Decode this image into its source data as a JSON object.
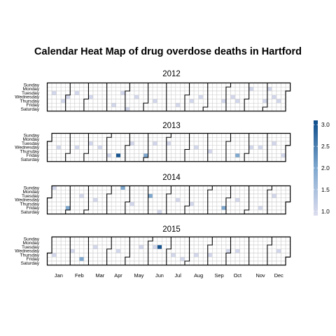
{
  "chart_data": {
    "type": "heatmap",
    "title": "Calendar Heat Map of drug overdose deaths in Hartford",
    "years": [
      "2012",
      "2013",
      "2014",
      "2015"
    ],
    "weekdays": [
      "Sunday",
      "Monday",
      "Tuesday",
      "Wednesday",
      "Thursday",
      "Friday",
      "Saturday"
    ],
    "months": [
      "Jan",
      "Feb",
      "Mar",
      "Apr",
      "May",
      "Jun",
      "Jul",
      "Aug",
      "Sep",
      "Oct",
      "Nov",
      "Dec"
    ],
    "legend": {
      "ticks": [
        "3.0",
        "2.5",
        "2.0",
        "1.5",
        "1.0"
      ],
      "min": 0.9,
      "max": 3.1,
      "placement": "right"
    },
    "colors": {
      "low": "#dcdcee",
      "mid": "#7ea8cf",
      "high": "#0d4c8a",
      "empty": "#ffffff",
      "grid": "#c8c8c8"
    },
    "data": [
      {
        "year": "2012",
        "values": [
          {
            "date": "2012-01-10",
            "value": 1
          },
          {
            "date": "2012-01-26",
            "value": 1
          },
          {
            "date": "2012-02-01",
            "value": 1
          },
          {
            "date": "2012-02-14",
            "value": 1
          },
          {
            "date": "2012-03-07",
            "value": 1
          },
          {
            "date": "2012-04-13",
            "value": 1
          },
          {
            "date": "2012-04-24",
            "value": 1
          },
          {
            "date": "2012-05-05",
            "value": 1
          },
          {
            "date": "2012-05-16",
            "value": 1
          },
          {
            "date": "2012-06-14",
            "value": 1
          },
          {
            "date": "2012-07-20",
            "value": 1
          },
          {
            "date": "2012-08-09",
            "value": 1
          },
          {
            "date": "2012-08-22",
            "value": 1
          },
          {
            "date": "2012-09-27",
            "value": 1
          },
          {
            "date": "2012-10-10",
            "value": 1
          },
          {
            "date": "2012-10-18",
            "value": 1
          },
          {
            "date": "2012-11-05",
            "value": 1
          },
          {
            "date": "2012-11-29",
            "value": 1
          },
          {
            "date": "2012-12-03",
            "value": 1
          },
          {
            "date": "2012-12-12",
            "value": 1
          },
          {
            "date": "2012-12-20",
            "value": 1
          }
        ]
      },
      {
        "year": "2013",
        "values": [
          {
            "date": "2013-01-16",
            "value": 1
          },
          {
            "date": "2013-02-13",
            "value": 1
          },
          {
            "date": "2013-03-05",
            "value": 1
          },
          {
            "date": "2013-03-20",
            "value": 1
          },
          {
            "date": "2013-04-05",
            "value": 1
          },
          {
            "date": "2013-04-19",
            "value": 3
          },
          {
            "date": "2013-05-07",
            "value": 1
          },
          {
            "date": "2013-05-31",
            "value": 2
          },
          {
            "date": "2013-06-11",
            "value": 1
          },
          {
            "date": "2013-07-02",
            "value": 1
          },
          {
            "date": "2013-08-14",
            "value": 1
          },
          {
            "date": "2013-09-05",
            "value": 1
          },
          {
            "date": "2013-10-18",
            "value": 2
          },
          {
            "date": "2013-11-06",
            "value": 1
          },
          {
            "date": "2013-11-20",
            "value": 1
          },
          {
            "date": "2013-12-10",
            "value": 1
          },
          {
            "date": "2013-12-27",
            "value": 1
          }
        ]
      },
      {
        "year": "2014",
        "values": [
          {
            "date": "2014-01-05",
            "value": 1
          },
          {
            "date": "2014-01-31",
            "value": 2
          },
          {
            "date": "2014-02-18",
            "value": 1
          },
          {
            "date": "2014-03-12",
            "value": 1
          },
          {
            "date": "2014-04-20",
            "value": 2
          },
          {
            "date": "2014-05-08",
            "value": 1
          },
          {
            "date": "2014-06-03",
            "value": 2
          },
          {
            "date": "2014-06-21",
            "value": 1
          },
          {
            "date": "2014-07-16",
            "value": 1
          },
          {
            "date": "2014-08-07",
            "value": 1
          },
          {
            "date": "2014-09-26",
            "value": 2
          },
          {
            "date": "2014-10-15",
            "value": 1
          },
          {
            "date": "2014-11-21",
            "value": 1
          },
          {
            "date": "2014-12-09",
            "value": 1
          }
        ]
      },
      {
        "year": "2015",
        "values": [
          {
            "date": "2015-01-08",
            "value": 1
          },
          {
            "date": "2015-02-04",
            "value": 1
          },
          {
            "date": "2015-02-20",
            "value": 2
          },
          {
            "date": "2015-03-10",
            "value": 1
          },
          {
            "date": "2015-04-15",
            "value": 1
          },
          {
            "date": "2015-05-19",
            "value": 1
          },
          {
            "date": "2015-06-09",
            "value": 1
          },
          {
            "date": "2015-06-16",
            "value": 3
          },
          {
            "date": "2015-07-09",
            "value": 1
          },
          {
            "date": "2015-07-24",
            "value": 1
          },
          {
            "date": "2015-08-13",
            "value": 1
          },
          {
            "date": "2015-09-03",
            "value": 1
          },
          {
            "date": "2015-09-30",
            "value": 1
          },
          {
            "date": "2015-10-14",
            "value": 1
          },
          {
            "date": "2015-12-16",
            "value": 1
          }
        ]
      }
    ]
  }
}
